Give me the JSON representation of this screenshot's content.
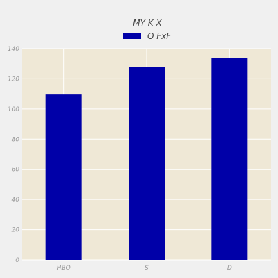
{
  "chart_data": {
    "type": "bar",
    "title": "MY K X",
    "xlabel": "",
    "ylabel": "",
    "categories": [
      "HBO",
      "S",
      "D"
    ],
    "series": [
      {
        "name": "O FxF",
        "values": [
          110,
          128,
          134
        ]
      }
    ],
    "ylim": [
      0,
      140
    ],
    "yticks": [
      0,
      20,
      40,
      60,
      80,
      100,
      120,
      140
    ],
    "grid": true,
    "legend_position": "top-center",
    "colors": {
      "bar": "#0000a8",
      "plot_background": "#efe8d6",
      "grid": "#ffffff",
      "figure_background": "#f0f0f0"
    }
  }
}
